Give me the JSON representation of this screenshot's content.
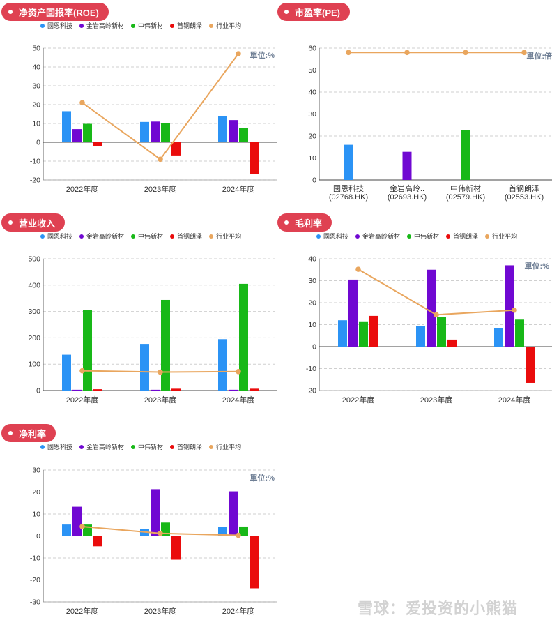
{
  "colors": {
    "title_bg": "#df4152",
    "company1": "#2b93f5",
    "company2": "#7008d2",
    "company3": "#18b818",
    "company4": "#ea0c0c",
    "avg": "#e9a65e"
  },
  "legend_labels": [
    "國恩科技",
    "金岩高岭新材",
    "中伟新材",
    "首钢朗泽",
    "行业平均"
  ],
  "chart_data": [
    {
      "id": "roe",
      "type": "bar",
      "title": "净资产回报率(ROE)",
      "unit": "單位:%",
      "categories": [
        "2022年度",
        "2023年度",
        "2024年度"
      ],
      "ylim": [
        -20,
        50
      ],
      "yticks": [
        -20,
        -10,
        0,
        10,
        20,
        30,
        40,
        50
      ],
      "series": [
        {
          "name": "國恩科技",
          "values": [
            16.5,
            10.8,
            14
          ]
        },
        {
          "name": "金岩高岭新材",
          "values": [
            7,
            11,
            11.8
          ]
        },
        {
          "name": "中伟新材",
          "values": [
            9.8,
            10,
            7.5
          ]
        },
        {
          "name": "首钢朗泽",
          "values": [
            -2,
            -7,
            -17
          ]
        }
      ],
      "line": {
        "name": "行业平均",
        "values": [
          21,
          -9,
          47
        ]
      }
    },
    {
      "id": "pe",
      "type": "bar",
      "title": "市盈率(PE)",
      "unit": "單位:倍",
      "categories": [
        "國恩科技\n(02768.HK)",
        "金岩高岭..\n(02693.HK)",
        "中伟新材\n(02579.HK)",
        "首钢朗泽\n(02553.HK)"
      ],
      "ylim": [
        0,
        60
      ],
      "yticks": [
        0,
        10,
        20,
        30,
        40,
        50,
        60
      ],
      "values": [
        16,
        12.8,
        22.7,
        null
      ],
      "line": {
        "name": "行业平均",
        "values": [
          58,
          58,
          58,
          58
        ]
      }
    },
    {
      "id": "revenue",
      "type": "bar",
      "title": "营业收入",
      "categories": [
        "2022年度",
        "2023年度",
        "2024年度"
      ],
      "ylim": [
        0,
        500
      ],
      "yticks": [
        0,
        100,
        200,
        300,
        400,
        500
      ],
      "series": [
        {
          "name": "國恩科技",
          "values": [
            136,
            177,
            195
          ]
        },
        {
          "name": "金岩高岭新材",
          "values": [
            3,
            3,
            3
          ]
        },
        {
          "name": "中伟新材",
          "values": [
            305,
            344,
            405
          ]
        },
        {
          "name": "首钢朗泽",
          "values": [
            5,
            7,
            7
          ]
        }
      ],
      "line": {
        "name": "行业平均",
        "values": [
          75,
          70,
          72
        ]
      }
    },
    {
      "id": "gross_margin",
      "type": "bar",
      "title": "毛利率",
      "unit": "單位:%",
      "categories": [
        "2022年度",
        "2023年度",
        "2024年度"
      ],
      "ylim": [
        -20,
        40
      ],
      "yticks": [
        -20,
        -10,
        0,
        10,
        20,
        30,
        40
      ],
      "series": [
        {
          "name": "國恩科技",
          "values": [
            12,
            9.3,
            8.5
          ]
        },
        {
          "name": "金岩高岭新材",
          "values": [
            30.5,
            35,
            37
          ]
        },
        {
          "name": "中伟新材",
          "values": [
            11.5,
            13.5,
            12.3
          ]
        },
        {
          "name": "首钢朗泽",
          "values": [
            14,
            3.2,
            -16.5
          ]
        }
      ],
      "line": {
        "name": "行业平均",
        "values": [
          35.2,
          14.5,
          16.6
        ]
      }
    },
    {
      "id": "net_margin",
      "type": "bar",
      "title": "净利率",
      "unit": "單位:%",
      "categories": [
        "2022年度",
        "2023年度",
        "2024年度"
      ],
      "ylim": [
        -30,
        30
      ],
      "yticks": [
        -30,
        -20,
        -10,
        0,
        10,
        20,
        30
      ],
      "series": [
        {
          "name": "國恩科技",
          "values": [
            5.2,
            3.2,
            4.2
          ]
        },
        {
          "name": "金岩高岭新材",
          "values": [
            13.3,
            21.3,
            20.3
          ]
        },
        {
          "name": "中伟新材",
          "values": [
            5.2,
            6.1,
            4.3
          ]
        },
        {
          "name": "首钢朗泽",
          "values": [
            -4.7,
            -10.8,
            -23.8
          ]
        }
      ],
      "line": {
        "name": "行业平均",
        "values": [
          4.3,
          1.2,
          0.3
        ]
      }
    }
  ],
  "watermark": "雪球：爱投资的小熊猫"
}
